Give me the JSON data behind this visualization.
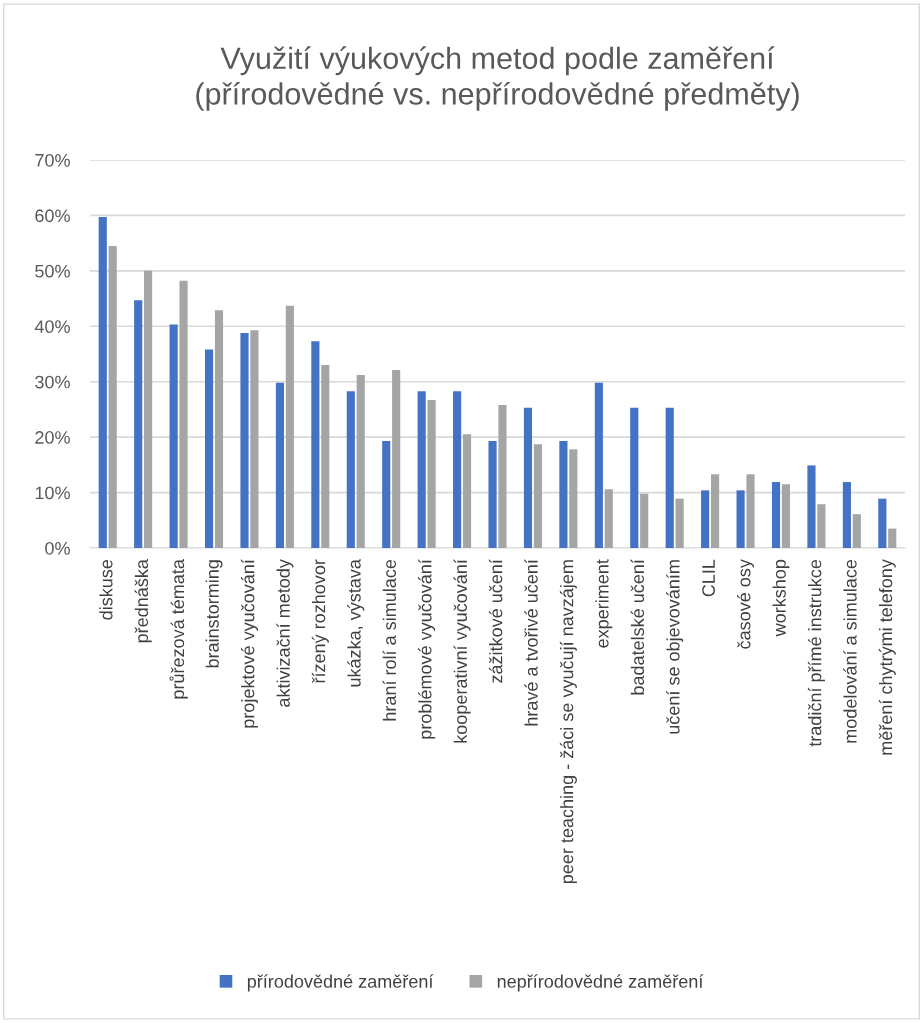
{
  "chart_data": {
    "type": "bar",
    "title": "Využití výukových metod podle zaměření\n(přírodovědné vs. nepřírodovědné předměty)",
    "categories": [
      "diskuse",
      "přednáška",
      "průřezová témata",
      "brainstorming",
      "projektové vyučování",
      "aktivizační metody",
      "řízený rozhovor",
      "ukázka, výstava",
      "hraní rolí a simulace",
      "problémové vyučování",
      "kooperativní vyučování",
      "zážitkové učení",
      "hravé a tvořivé učení",
      "peer teaching - žáci se vyučují navzájem",
      "experiment",
      "badatelské učení",
      "učení se objevováním",
      "CLIL",
      "časové osy",
      "workshop",
      "tradiční přímé instrukce",
      "modelování a simulace",
      "měření chytrými telefony"
    ],
    "series": [
      {
        "name": "přírodovědné zaměření",
        "color": "#4472c4",
        "values": [
          59.7,
          44.7,
          40.3,
          35.8,
          38.8,
          29.8,
          37.3,
          28.3,
          19.3,
          28.3,
          28.3,
          19.3,
          25.3,
          19.3,
          29.8,
          25.3,
          25.3,
          10.4,
          10.4,
          11.9,
          14.9,
          11.9,
          8.9
        ]
      },
      {
        "name": "nepřírodovědné zaměření",
        "color": "#a5a5a5",
        "values": [
          54.5,
          50.0,
          48.2,
          42.9,
          39.3,
          43.7,
          33.0,
          31.2,
          32.1,
          26.7,
          20.5,
          25.8,
          18.7,
          17.8,
          10.6,
          9.8,
          8.9,
          13.3,
          13.3,
          11.5,
          7.9,
          6.1,
          3.5
        ]
      }
    ],
    "ylim": [
      0,
      70
    ],
    "yticks": [
      {
        "value": 0,
        "label": "0%"
      },
      {
        "value": 10,
        "label": "10%"
      },
      {
        "value": 20,
        "label": "20%"
      },
      {
        "value": 30,
        "label": "30%"
      },
      {
        "value": 40,
        "label": "40%"
      },
      {
        "value": 50,
        "label": "50%"
      },
      {
        "value": 60,
        "label": "60%"
      },
      {
        "value": 70,
        "label": "70%"
      }
    ],
    "grid": "y",
    "legend": "bottom"
  }
}
